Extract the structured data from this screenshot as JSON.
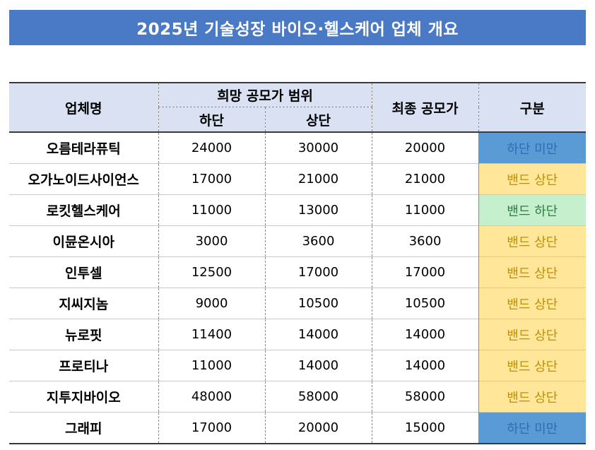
{
  "title": "2025년 기술성장 바이오·헬스케어 업체 개요",
  "colors": {
    "title_bg": "#4a7ac6",
    "header_bg": "#d9e1f2",
    "below_band": "#5b9bd5",
    "band_upper": "#ffe699",
    "band_lower": "#c6efce"
  },
  "headers": {
    "company": "업체명",
    "range": "희망 공모가 범위",
    "low": "하단",
    "high": "상단",
    "final": "최종 공모가",
    "category": "구분"
  },
  "rows": [
    {
      "name": "오름테라퓨틱",
      "low": "24000",
      "high": "30000",
      "final": "20000",
      "category": "하단 미만",
      "type": "below"
    },
    {
      "name": "오가노이드사이언스",
      "low": "17000",
      "high": "21000",
      "final": "21000",
      "category": "밴드 상단",
      "type": "upper"
    },
    {
      "name": "로킷헬스케어",
      "low": "11000",
      "high": "13000",
      "final": "11000",
      "category": "밴드 하단",
      "type": "lower"
    },
    {
      "name": "이뮨온시아",
      "low": "3000",
      "high": "3600",
      "final": "3600",
      "category": "밴드 상단",
      "type": "upper"
    },
    {
      "name": "인투셀",
      "low": "12500",
      "high": "17000",
      "final": "17000",
      "category": "밴드 상단",
      "type": "upper"
    },
    {
      "name": "지씨지놈",
      "low": "9000",
      "high": "10500",
      "final": "10500",
      "category": "밴드 상단",
      "type": "upper"
    },
    {
      "name": "뉴로핏",
      "low": "11400",
      "high": "14000",
      "final": "14000",
      "category": "밴드 상단",
      "type": "upper"
    },
    {
      "name": "프로티나",
      "low": "11000",
      "high": "14000",
      "final": "14000",
      "category": "밴드 상단",
      "type": "upper"
    },
    {
      "name": "지투지바이오",
      "low": "48000",
      "high": "58000",
      "final": "58000",
      "category": "밴드 상단",
      "type": "upper"
    },
    {
      "name": "그래피",
      "low": "17000",
      "high": "20000",
      "final": "15000",
      "category": "하단 미만",
      "type": "below"
    }
  ]
}
